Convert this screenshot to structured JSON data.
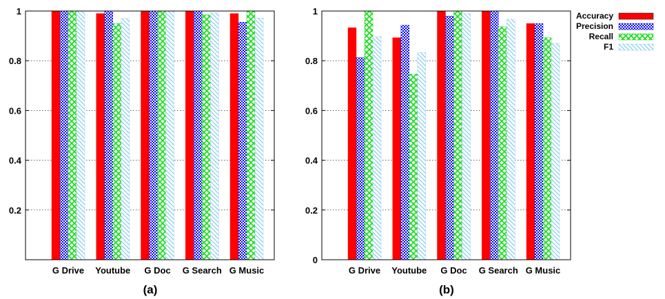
{
  "chart_data": [
    {
      "type": "bar",
      "caption": "(a)",
      "categories": [
        "G Drive",
        "Youtube",
        "G Doc",
        "G Search",
        "G Music"
      ],
      "ylim": [
        0,
        1
      ],
      "yticks": [
        "0.2",
        "0.4",
        "0.6",
        "0.8",
        "1"
      ],
      "ytick_values": [
        0.2,
        0.4,
        0.6,
        0.8,
        1
      ],
      "grid": true,
      "series": [
        {
          "name": "Accuracy",
          "values": [
            1.0,
            0.99,
            1.0,
            1.0,
            0.99
          ]
        },
        {
          "name": "Precision",
          "values": [
            1.0,
            1.0,
            1.0,
            1.0,
            0.955
          ]
        },
        {
          "name": "Recall",
          "values": [
            1.0,
            0.95,
            1.0,
            0.985,
            1.0
          ]
        },
        {
          "name": "F1",
          "values": [
            1.0,
            0.97,
            1.0,
            0.993,
            0.972
          ]
        }
      ]
    },
    {
      "type": "bar",
      "caption": "(b)",
      "categories": [
        "G Drive",
        "Youtube",
        "G Doc",
        "G Search",
        "G Music"
      ],
      "ylim": [
        0,
        1
      ],
      "yticks": [
        "0",
        "0.2",
        "0.4",
        "0.6",
        "0.8",
        "1"
      ],
      "ytick_values": [
        0,
        0.2,
        0.4,
        0.6,
        0.8,
        1
      ],
      "grid": true,
      "series": [
        {
          "name": "Accuracy",
          "values": [
            0.933,
            0.893,
            1.0,
            1.0,
            0.95
          ]
        },
        {
          "name": "Precision",
          "values": [
            0.813,
            0.943,
            0.98,
            1.0,
            0.95
          ]
        },
        {
          "name": "Recall",
          "values": [
            1.0,
            0.747,
            1.0,
            0.937,
            0.893
          ]
        },
        {
          "name": "F1",
          "values": [
            0.897,
            0.833,
            0.99,
            0.967,
            0.87
          ]
        }
      ]
    }
  ],
  "legend": {
    "placement": "top-right",
    "entries": [
      "Accuracy",
      "Precision",
      "Recall",
      "F1"
    ]
  },
  "colors": {
    "Accuracy": "#ff0000",
    "Precision": "#0000ff",
    "Recall": "#22dd22",
    "F1": "#88ccee"
  }
}
